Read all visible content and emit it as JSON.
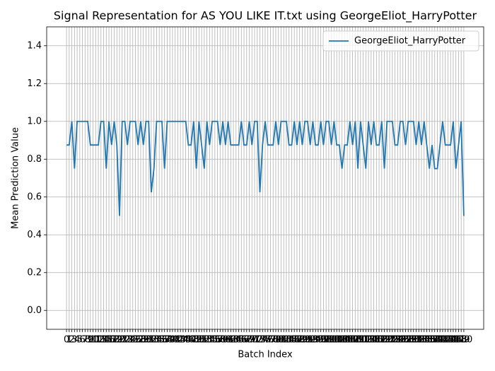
{
  "chart_data": {
    "type": "line",
    "title": "Signal Representation for AS YOU LIKE IT.txt using GeorgeEliot_HarryPotter",
    "x_label": "Batch Index",
    "y_label": "Mean Prediction Value",
    "x": [
      0,
      1,
      2,
      3,
      4,
      5,
      6,
      7,
      8,
      9,
      10,
      11,
      12,
      13,
      14,
      15,
      16,
      17,
      18,
      19,
      20,
      21,
      22,
      23,
      24,
      25,
      26,
      27,
      28,
      29,
      30,
      31,
      32,
      33,
      34,
      35,
      36,
      37,
      38,
      39,
      40,
      41,
      42,
      43,
      44,
      45,
      46,
      47,
      48,
      49,
      50,
      51,
      52,
      53,
      54,
      55,
      56,
      57,
      58,
      59,
      60,
      61,
      62,
      63,
      64,
      65,
      66,
      67,
      68,
      69,
      70,
      71,
      72,
      73,
      74,
      75,
      76,
      77,
      78,
      79,
      80,
      81,
      82,
      83,
      84,
      85,
      86,
      87,
      88,
      89,
      90,
      91,
      92,
      93,
      94,
      95,
      96,
      97,
      98,
      99,
      100,
      101,
      102,
      103,
      104,
      105,
      106,
      107,
      108,
      109,
      110,
      111,
      112,
      113,
      114,
      115,
      116,
      117,
      118,
      119,
      120,
      121,
      122,
      123,
      124,
      125,
      126,
      127,
      128,
      129,
      130,
      131,
      132,
      133,
      134,
      135,
      136,
      137,
      138,
      139,
      140,
      141,
      142,
      143,
      144,
      145,
      146,
      147,
      148,
      149,
      150
    ],
    "series": [
      {
        "name": "GeorgeEliot_HarryPotter",
        "color": "#1f77b4",
        "values": [
          0.875,
          0.875,
          1,
          0.75,
          1,
          1,
          1,
          1,
          1,
          0.875,
          0.875,
          0.875,
          0.875,
          1,
          1,
          0.75,
          1,
          0.875,
          1,
          0.875,
          0.5,
          1,
          1,
          0.875,
          1,
          1,
          1,
          0.875,
          1,
          0.875,
          1,
          1,
          0.625,
          0.75,
          1,
          1,
          1,
          0.75,
          1,
          1,
          1,
          1,
          1,
          1,
          1,
          1,
          0.875,
          0.875,
          1,
          0.75,
          1,
          0.875,
          0.75,
          1,
          0.875,
          1,
          1,
          1,
          0.875,
          1,
          0.875,
          1,
          0.875,
          0.875,
          0.875,
          0.875,
          1,
          0.875,
          0.875,
          1,
          0.875,
          1,
          1,
          0.625,
          0.875,
          1,
          0.875,
          0.875,
          0.875,
          1,
          0.875,
          1,
          1,
          1,
          0.875,
          0.875,
          1,
          0.875,
          1,
          0.875,
          1,
          1,
          0.875,
          1,
          0.875,
          0.875,
          1,
          0.875,
          1,
          1,
          0.875,
          1,
          0.875,
          0.875,
          0.75,
          0.875,
          0.875,
          1,
          0.875,
          1,
          0.75,
          1,
          0.875,
          0.75,
          1,
          0.875,
          1,
          0.875,
          0.875,
          1,
          0.75,
          1,
          1,
          1,
          0.875,
          0.875,
          1,
          1,
          0.875,
          1,
          1,
          1,
          0.875,
          1,
          0.875,
          1,
          0.875,
          0.75,
          0.875,
          0.75,
          0.75,
          0.875,
          1,
          0.875,
          0.875,
          0.875,
          1,
          0.75,
          0.875,
          1,
          0.5
        ]
      }
    ],
    "xlim": [
      -7.5,
      157.5
    ],
    "ylim": [
      -0.1,
      1.5
    ],
    "yticks": [
      {
        "value": 0,
        "label": "0.0"
      },
      0.2,
      0.4,
      0.6,
      0.8,
      {
        "value": 1,
        "label": "1.0"
      },
      1.2,
      1.4
    ],
    "grid": true,
    "legend": "upper right"
  }
}
